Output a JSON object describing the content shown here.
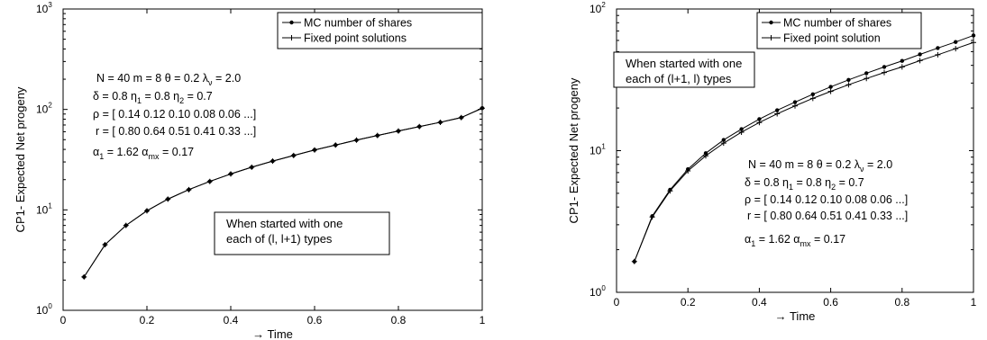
{
  "chart_data": [
    {
      "type": "line",
      "y_scale": "log",
      "xlabel": "→ Time",
      "ylabel": "CP1- Expected Net progeny",
      "xlim": [
        0,
        1
      ],
      "ylim": [
        1,
        1000
      ],
      "x_ticks": [
        "0",
        "0.2",
        "0.4",
        "0.6",
        "0.8",
        "1"
      ],
      "y_ticks": [
        {
          "base": "10",
          "exp": "0"
        },
        {
          "base": "10",
          "exp": "1"
        },
        {
          "base": "10",
          "exp": "2"
        },
        {
          "base": "10",
          "exp": "3"
        }
      ],
      "legend": {
        "position": "top-right",
        "entries": [
          "MC number of shares",
          "Fixed point solutions"
        ]
      },
      "x": [
        0.05,
        0.1,
        0.15,
        0.2,
        0.25,
        0.3,
        0.35,
        0.4,
        0.45,
        0.5,
        0.55,
        0.6,
        0.65,
        0.7,
        0.75,
        0.8,
        0.85,
        0.9,
        0.95,
        1.0
      ],
      "series": [
        {
          "name": "MC number of shares",
          "marker": "dot",
          "values": [
            2.15,
            4.5,
            7.0,
            9.8,
            12.8,
            15.9,
            19.2,
            22.8,
            26.6,
            30.6,
            34.8,
            39.5,
            44.2,
            49.5,
            55.0,
            61.0,
            67.5,
            74.5,
            83.0,
            103.0
          ]
        },
        {
          "name": "Fixed point solutions",
          "marker": "plus",
          "values": [
            2.15,
            4.5,
            7.0,
            9.8,
            12.8,
            15.9,
            19.2,
            22.8,
            26.6,
            30.6,
            34.8,
            39.5,
            44.2,
            49.5,
            55.0,
            61.0,
            67.5,
            74.5,
            83.0,
            103.0
          ]
        }
      ],
      "params": {
        "line1": "N =  40 m =   8 θ = 0.2 λ",
        "line1_sub": "ν",
        "line1_end": " = 2.0",
        "line2_a": "δ = 0.8 η",
        "line2_sub1": "1",
        "line2_b": " = 0.8  η",
        "line2_sub2": "2",
        "line2_c": " = 0.7",
        "line3": "ρ = [ 0.14  0.12  0.10  0.08  0.06  ...]",
        "line4": "r = [ 0.80  0.64  0.51  0.41  0.33  ...]",
        "line5_a": "α",
        "line5_sub1": "1",
        "line5_b": " = 1.62   α",
        "line5_sub2": "mx",
        "line5_c": " = 0.17"
      },
      "note": {
        "line1": "When started with one",
        "line2": "each of  (l, l+1) types"
      }
    },
    {
      "type": "line",
      "y_scale": "log",
      "xlabel": "→ Time",
      "ylabel": "CP1- Expected Net progeny",
      "xlim": [
        0,
        1
      ],
      "ylim": [
        1,
        100
      ],
      "x_ticks": [
        "0",
        "0.2",
        "0.4",
        "0.6",
        "0.8",
        "1"
      ],
      "y_ticks": [
        {
          "base": "10",
          "exp": "0"
        },
        {
          "base": "10",
          "exp": "1"
        },
        {
          "base": "10",
          "exp": "2"
        }
      ],
      "legend": {
        "position": "top-right",
        "entries": [
          "MC number of shares",
          "Fixed point solution"
        ]
      },
      "x": [
        0.05,
        0.1,
        0.15,
        0.2,
        0.25,
        0.3,
        0.35,
        0.4,
        0.45,
        0.5,
        0.55,
        0.6,
        0.65,
        0.7,
        0.75,
        0.8,
        0.85,
        0.9,
        0.95,
        1.0
      ],
      "series": [
        {
          "name": "MC number of shares",
          "marker": "dot",
          "values": [
            1.65,
            3.45,
            5.3,
            7.4,
            9.6,
            11.9,
            14.2,
            16.7,
            19.3,
            22.0,
            25.0,
            28.2,
            31.6,
            35.2,
            39.0,
            43.0,
            47.8,
            53.0,
            58.5,
            65.0
          ]
        },
        {
          "name": "Fixed point solution",
          "marker": "plus",
          "values": [
            1.65,
            3.4,
            5.2,
            7.2,
            9.2,
            11.3,
            13.5,
            15.8,
            18.2,
            20.7,
            23.4,
            26.2,
            29.2,
            32.3,
            35.6,
            39.0,
            43.2,
            47.5,
            52.5,
            58.0
          ]
        }
      ],
      "params": {
        "line1": "N =  40 m =   8 θ = 0.2 λ",
        "line1_sub": "ν",
        "line1_end": " = 2.0",
        "line2_a": "δ = 0.8 η",
        "line2_sub1": "1",
        "line2_b": " = 0.8  η",
        "line2_sub2": "2",
        "line2_c": " = 0.7",
        "line3": "ρ = [ 0.14  0.12  0.10  0.08  0.06  ...]",
        "line4": "r = [ 0.80  0.64  0.51  0.41  0.33  ...]",
        "line5_a": "α",
        "line5_sub1": "1",
        "line5_b": " = 1.62   α",
        "line5_sub2": "mx",
        "line5_c": " = 0.17"
      },
      "note": {
        "line1": "When started with one",
        "line2": "each of  (l+1, l) types"
      }
    }
  ]
}
